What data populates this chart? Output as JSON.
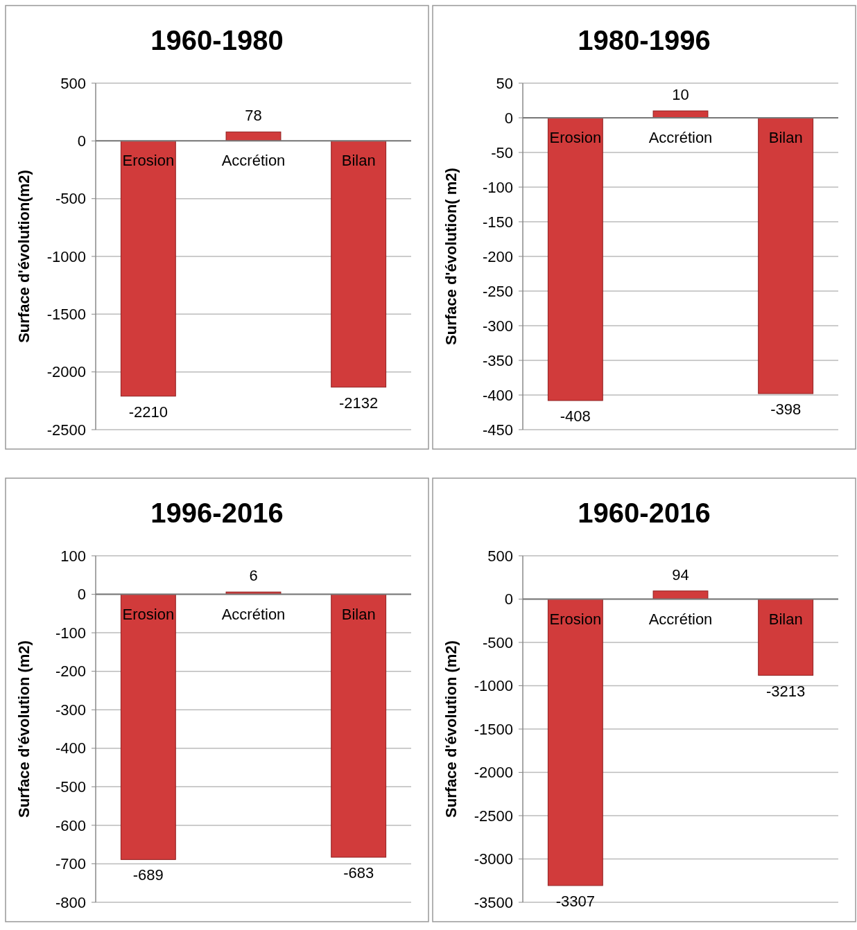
{
  "chart_data": [
    {
      "type": "bar",
      "title": "1960-1980",
      "ylabel": "Surface d'évolution(m2)",
      "categories": [
        "Erosion",
        "Accrétion",
        "Bilan"
      ],
      "values": [
        -2210,
        78,
        -2132
      ],
      "color": "#d13b3b",
      "ylim": [
        -2500,
        500
      ],
      "yticks": [
        -2500,
        -2000,
        -1500,
        -1000,
        -500,
        0,
        500
      ],
      "grid": "y",
      "data_labels": true
    },
    {
      "type": "bar",
      "title": "1980-1996",
      "ylabel": "Surface d'évolution( m2)",
      "categories": [
        "Erosion",
        "Accrétion",
        "Bilan"
      ],
      "values": [
        -408,
        10,
        -398
      ],
      "color": "#d13b3b",
      "ylim": [
        -450,
        50
      ],
      "yticks": [
        -450,
        -400,
        -350,
        -300,
        -250,
        -200,
        -150,
        -100,
        -50,
        0,
        50
      ],
      "grid": "y",
      "data_labels": true
    },
    {
      "type": "bar",
      "title": "1996-2016",
      "ylabel": "Surface d'évolution (m2)",
      "categories": [
        "Erosion",
        "Accrétion",
        "Bilan"
      ],
      "values": [
        -689,
        6,
        -683
      ],
      "color": "#d13b3b",
      "ylim": [
        -800,
        100
      ],
      "yticks": [
        -800,
        -700,
        -600,
        -500,
        -400,
        -300,
        -200,
        -100,
        0,
        100
      ],
      "grid": "y",
      "data_labels": true
    },
    {
      "type": "bar",
      "title": "1960-2016",
      "ylabel": "Surface d'évolution (m2)",
      "categories": [
        "Erosion",
        "Accrétion",
        "Bilan"
      ],
      "values": [
        -3307,
        94,
        -880
      ],
      "value_labels": [
        "-3307",
        "94",
        null
      ],
      "annotations": [
        {
          "text": "-3213",
          "x": "Bilan",
          "y": -880
        }
      ],
      "color": "#d13b3b",
      "ylim": [
        -3500,
        500
      ],
      "yticks": [
        -3500,
        -3000,
        -2500,
        -2000,
        -1500,
        -1000,
        -500,
        0,
        500
      ],
      "grid": "y"
    }
  ]
}
